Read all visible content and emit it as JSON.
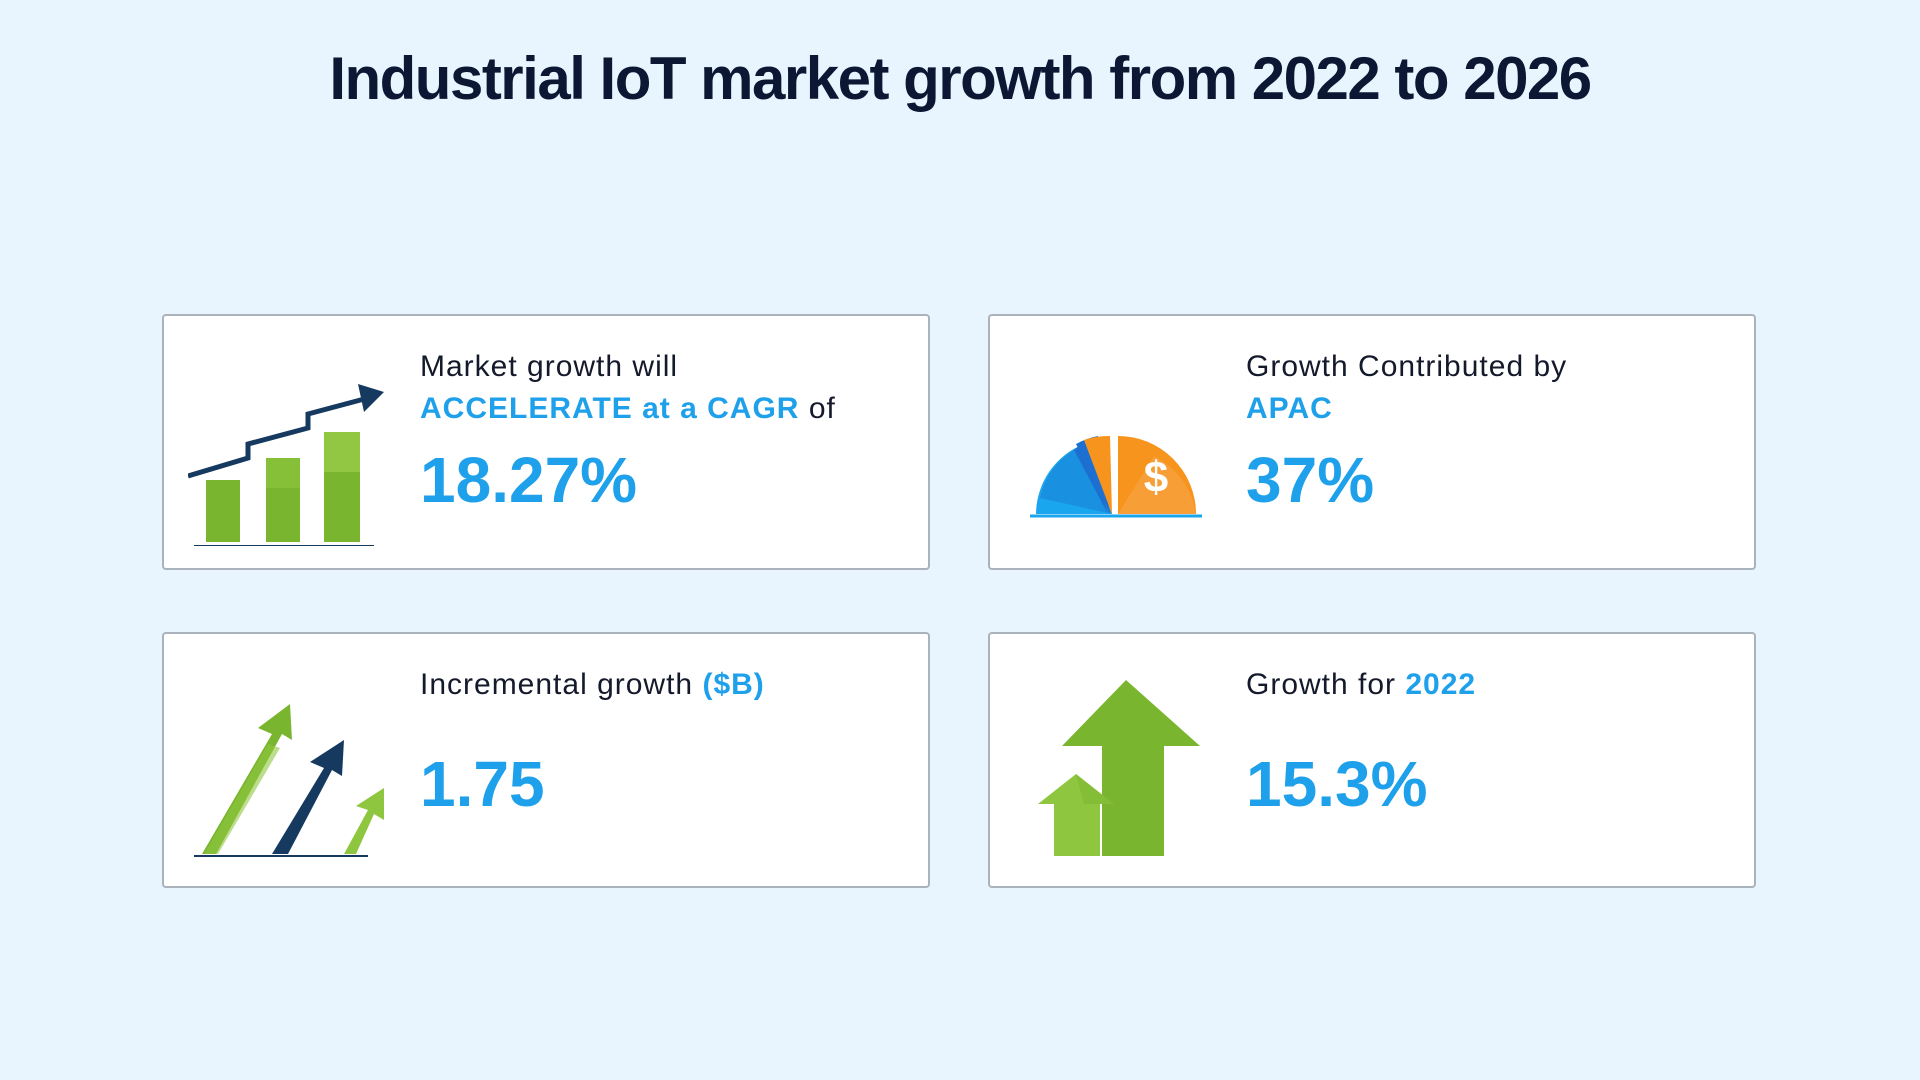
{
  "title": "Industrial IoT market growth from 2022 to 2026",
  "colors": {
    "background": "#e8f5fe",
    "accent": "#1ea0ea",
    "title": "#0c1733",
    "green": "#7ab52f",
    "navy": "#163a5f",
    "orange": "#f7941d"
  },
  "cards": [
    {
      "icon": "bar-chart-growth-icon",
      "line1": "Market growth will",
      "accent": "ACCELERATE at a CAGR",
      "suffix": " of",
      "value": "18.27%"
    },
    {
      "icon": "pie-gauge-dollar-icon",
      "line1": "Growth Contributed by",
      "accent": "APAC",
      "value": "37%"
    },
    {
      "icon": "rising-arrows-icon",
      "line1": "Incremental growth ",
      "accent": "($B)",
      "value": "1.75"
    },
    {
      "icon": "up-arrows-icon",
      "line1": "Growth for ",
      "accent": "2022",
      "value": "15.3%"
    }
  ]
}
